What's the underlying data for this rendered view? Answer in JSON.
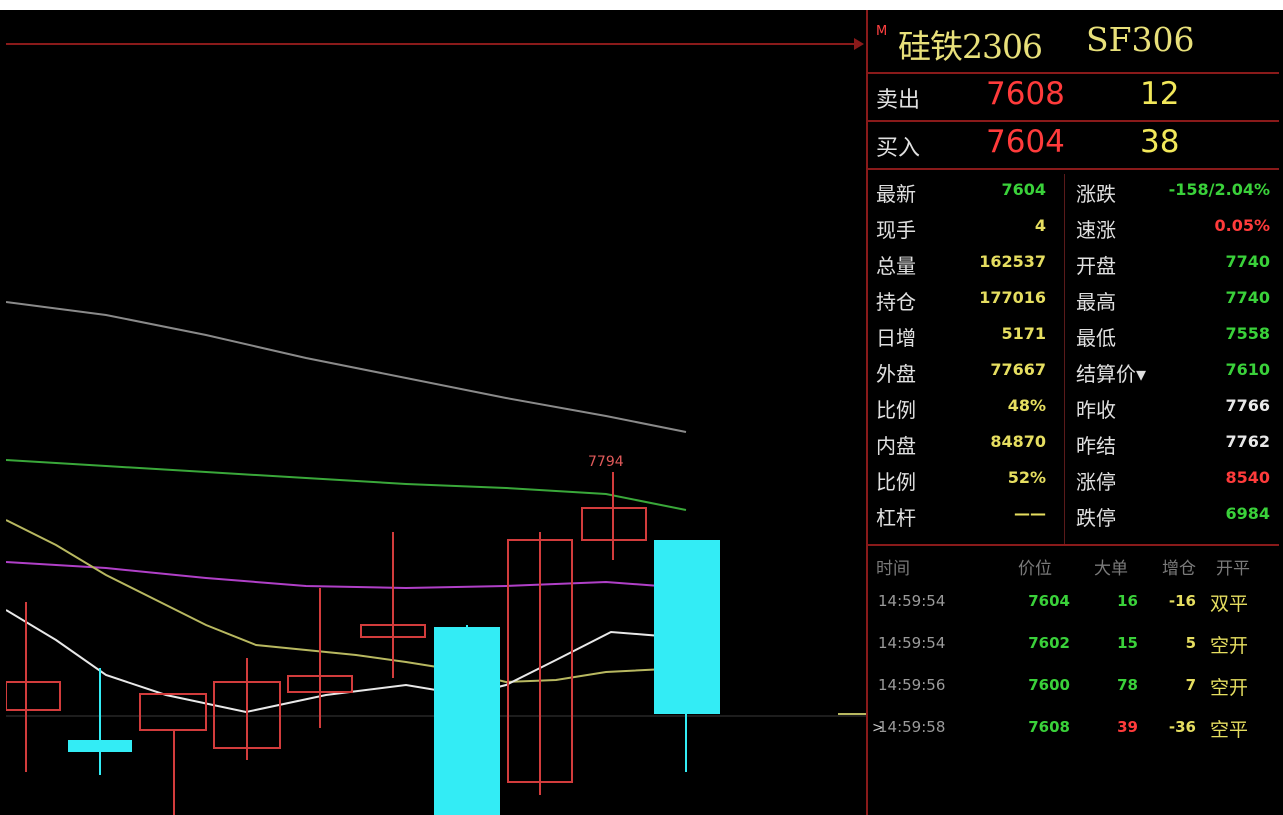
{
  "instrument": {
    "marker": "M",
    "name": "硅铁2306",
    "code": "SF306"
  },
  "quote": {
    "sell": {
      "label": "卖出",
      "price": "7608",
      "volume": "12"
    },
    "buy": {
      "label": "买入",
      "price": "7604",
      "volume": "38"
    }
  },
  "stats": [
    {
      "l1": "最新",
      "v1": "7604",
      "c1": "grn",
      "l2": "涨跌",
      "v2": "-158/2.04%",
      "c2": "grn"
    },
    {
      "l1": "现手",
      "v1": "4",
      "c1": "yel",
      "l2": "速涨",
      "v2": "0.05%",
      "c2": "red"
    },
    {
      "l1": "总量",
      "v1": "162537",
      "c1": "yel",
      "l2": "开盘",
      "v2": "7740",
      "c2": "grn"
    },
    {
      "l1": "持仓",
      "v1": "177016",
      "c1": "yel",
      "l2": "最高",
      "v2": "7740",
      "c2": "grn"
    },
    {
      "l1": "日增",
      "v1": "5171",
      "c1": "yel",
      "l2": "最低",
      "v2": "7558",
      "c2": "grn"
    },
    {
      "l1": "外盘",
      "v1": "77667",
      "c1": "yel",
      "l2": "结算价▾",
      "v2": "7610",
      "c2": "grn"
    },
    {
      "l1": "比例",
      "v1": "48%",
      "c1": "yel",
      "l2": "昨收",
      "v2": "7766",
      "c2": "wht"
    },
    {
      "l1": "内盘",
      "v1": "84870",
      "c1": "yel",
      "l2": "昨结",
      "v2": "7762",
      "c2": "wht"
    },
    {
      "l1": "比例",
      "v1": "52%",
      "c1": "yel",
      "l2": "涨停",
      "v2": "8540",
      "c2": "red"
    },
    {
      "l1": "杠杆",
      "v1": "——",
      "c1": "yel",
      "l2": "跌停",
      "v2": "6984",
      "c2": "grn"
    }
  ],
  "trades": {
    "headers": {
      "time": "时间",
      "price": "价位",
      "big": "大单",
      "oi": "增仓",
      "type": "开平"
    },
    "rows": [
      {
        "arrow": "",
        "time": "14:59:54",
        "price": "7604",
        "big": "16",
        "big_c": "grn",
        "oi": "-16",
        "type": "双平"
      },
      {
        "arrow": "",
        "time": "14:59:54",
        "price": "7602",
        "big": "15",
        "big_c": "grn",
        "oi": "5",
        "type": "空开"
      },
      {
        "arrow": "",
        "time": "14:59:56",
        "price": "7600",
        "big": "78",
        "big_c": "grn",
        "oi": "7",
        "type": "空开"
      },
      {
        "arrow": ">",
        "time": "14:59:58",
        "price": "7608",
        "big": "39",
        "big_c": "red",
        "oi": "-36",
        "type": "空平"
      }
    ]
  },
  "chart": {
    "high_label": "7794",
    "colors": {
      "up": "#d23c3c",
      "down": "#33ecf5",
      "ma_gray": "#8a8a8a",
      "ma_green": "#3aa83a",
      "ma_purple": "#b040c8",
      "ma_olive": "#b8b860",
      "ma_white": "#e8e8e8"
    }
  }
}
